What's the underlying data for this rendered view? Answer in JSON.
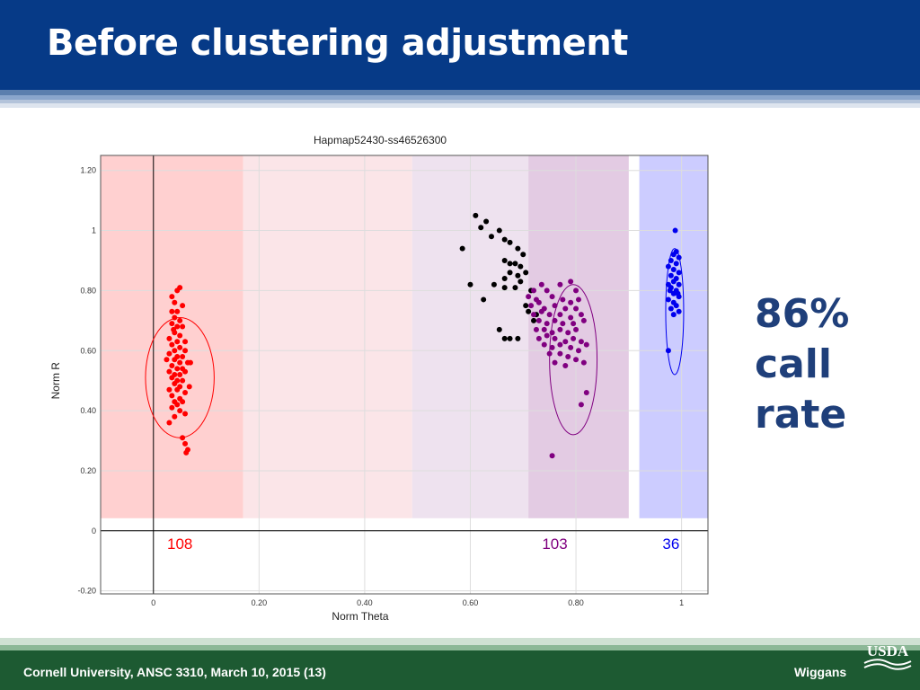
{
  "slide": {
    "title": "Before clustering adjustment",
    "callout": [
      "86%",
      "call",
      "rate"
    ],
    "footer_left": "Cornell University, ANSC 3310, March 10, 2015 (13)",
    "footer_right": "Wiggans",
    "logo_text": "USDA"
  },
  "colors": {
    "header": "#063a87",
    "callout_text": "#1f3f7a",
    "footer": "#1d5a32",
    "cluster_aa": "#ff0000",
    "cluster_ab": "#800080",
    "cluster_bb": "#0000ee",
    "nocall": "#000000"
  },
  "chart_data": {
    "type": "scatter",
    "title": "Hapmap52430-ss46526300",
    "xlabel": "Norm Theta",
    "ylabel": "Norm R",
    "xlim": [
      -0.1,
      1.05
    ],
    "ylim": [
      -0.21,
      1.25
    ],
    "xticks": [
      0,
      0.2,
      0.4,
      0.6,
      0.8,
      1
    ],
    "xtick_labels": [
      "0",
      "0.20",
      "0.40",
      "0.60",
      "0.80",
      "1"
    ],
    "yticks": [
      -0.2,
      0,
      0.2,
      0.4,
      0.6,
      0.8,
      1,
      1.2
    ],
    "ytick_labels": [
      "-0.20",
      "0",
      "0.20",
      "0.40",
      "0.60",
      "0.80",
      "1",
      "1.20"
    ],
    "grid": true,
    "zones": [
      {
        "name": "AA",
        "x": [
          -0.1,
          0.17
        ],
        "color": "#ffd0d0"
      },
      {
        "name": "AA light",
        "x": [
          0.17,
          0.49
        ],
        "color": "#fbe5e8"
      },
      {
        "name": "AB light",
        "x": [
          0.49,
          0.71
        ],
        "color": "#eee2ef"
      },
      {
        "name": "AB",
        "x": [
          0.71,
          0.9
        ],
        "color": "#e3cbe3"
      },
      {
        "name": "BB",
        "x": [
          0.92,
          1.05
        ],
        "color": "#ccccff"
      }
    ],
    "cluster_counts": [
      {
        "label": "108",
        "x": 0.05,
        "color": "#ff0000"
      },
      {
        "label": "103",
        "x": 0.76,
        "color": "#800080"
      },
      {
        "label": "36",
        "x": 0.98,
        "color": "#0000ee"
      }
    ],
    "ellipses": [
      {
        "series": "AA",
        "cx": 0.05,
        "cy": 0.51,
        "rx": 0.065,
        "ry": 0.2,
        "color": "#ff0000"
      },
      {
        "series": "AB",
        "cx": 0.795,
        "cy": 0.57,
        "rx": 0.045,
        "ry": 0.25,
        "color": "#800080"
      },
      {
        "series": "BB",
        "cx": 0.987,
        "cy": 0.73,
        "rx": 0.017,
        "ry": 0.21,
        "color": "#0000ee"
      }
    ],
    "series": [
      {
        "color": "#ff0000",
        "points": [
          [
            0.045,
            0.8
          ],
          [
            0.05,
            0.81
          ],
          [
            0.035,
            0.78
          ],
          [
            0.04,
            0.76
          ],
          [
            0.055,
            0.75
          ],
          [
            0.035,
            0.73
          ],
          [
            0.045,
            0.73
          ],
          [
            0.04,
            0.71
          ],
          [
            0.05,
            0.7
          ],
          [
            0.035,
            0.69
          ],
          [
            0.045,
            0.68
          ],
          [
            0.055,
            0.68
          ],
          [
            0.04,
            0.66
          ],
          [
            0.05,
            0.65
          ],
          [
            0.03,
            0.64
          ],
          [
            0.045,
            0.63
          ],
          [
            0.06,
            0.63
          ],
          [
            0.035,
            0.62
          ],
          [
            0.05,
            0.61
          ],
          [
            0.04,
            0.6
          ],
          [
            0.06,
            0.6
          ],
          [
            0.03,
            0.59
          ],
          [
            0.045,
            0.58
          ],
          [
            0.055,
            0.58
          ],
          [
            0.04,
            0.57
          ],
          [
            0.05,
            0.56
          ],
          [
            0.065,
            0.56
          ],
          [
            0.035,
            0.55
          ],
          [
            0.045,
            0.54
          ],
          [
            0.055,
            0.54
          ],
          [
            0.03,
            0.53
          ],
          [
            0.04,
            0.52
          ],
          [
            0.05,
            0.52
          ],
          [
            0.06,
            0.53
          ],
          [
            0.035,
            0.51
          ],
          [
            0.045,
            0.5
          ],
          [
            0.055,
            0.5
          ],
          [
            0.04,
            0.49
          ],
          [
            0.05,
            0.48
          ],
          [
            0.03,
            0.47
          ],
          [
            0.045,
            0.47
          ],
          [
            0.06,
            0.46
          ],
          [
            0.035,
            0.45
          ],
          [
            0.05,
            0.44
          ],
          [
            0.04,
            0.43
          ],
          [
            0.055,
            0.43
          ],
          [
            0.045,
            0.42
          ],
          [
            0.035,
            0.41
          ],
          [
            0.05,
            0.4
          ],
          [
            0.06,
            0.39
          ],
          [
            0.04,
            0.38
          ],
          [
            0.03,
            0.36
          ],
          [
            0.055,
            0.31
          ],
          [
            0.06,
            0.29
          ],
          [
            0.065,
            0.27
          ],
          [
            0.062,
            0.26
          ],
          [
            0.07,
            0.56
          ],
          [
            0.068,
            0.48
          ],
          [
            0.025,
            0.57
          ],
          [
            0.038,
            0.67
          ]
        ]
      },
      {
        "color": "#000000",
        "points": [
          [
            0.61,
            1.05
          ],
          [
            0.63,
            1.03
          ],
          [
            0.62,
            1.01
          ],
          [
            0.655,
            1.0
          ],
          [
            0.64,
            0.98
          ],
          [
            0.665,
            0.97
          ],
          [
            0.675,
            0.96
          ],
          [
            0.585,
            0.94
          ],
          [
            0.69,
            0.94
          ],
          [
            0.7,
            0.92
          ],
          [
            0.665,
            0.9
          ],
          [
            0.675,
            0.89
          ],
          [
            0.685,
            0.89
          ],
          [
            0.695,
            0.88
          ],
          [
            0.705,
            0.86
          ],
          [
            0.675,
            0.86
          ],
          [
            0.69,
            0.85
          ],
          [
            0.665,
            0.84
          ],
          [
            0.695,
            0.83
          ],
          [
            0.645,
            0.82
          ],
          [
            0.6,
            0.82
          ],
          [
            0.665,
            0.81
          ],
          [
            0.685,
            0.81
          ],
          [
            0.715,
            0.8
          ],
          [
            0.625,
            0.77
          ],
          [
            0.705,
            0.75
          ],
          [
            0.71,
            0.73
          ],
          [
            0.725,
            0.72
          ],
          [
            0.72,
            0.7
          ],
          [
            0.655,
            0.67
          ],
          [
            0.665,
            0.64
          ],
          [
            0.675,
            0.64
          ],
          [
            0.69,
            0.64
          ]
        ]
      },
      {
        "color": "#800080",
        "points": [
          [
            0.735,
            0.82
          ],
          [
            0.77,
            0.82
          ],
          [
            0.79,
            0.83
          ],
          [
            0.72,
            0.8
          ],
          [
            0.745,
            0.8
          ],
          [
            0.8,
            0.8
          ],
          [
            0.71,
            0.78
          ],
          [
            0.725,
            0.77
          ],
          [
            0.755,
            0.78
          ],
          [
            0.775,
            0.77
          ],
          [
            0.79,
            0.76
          ],
          [
            0.805,
            0.77
          ],
          [
            0.715,
            0.75
          ],
          [
            0.74,
            0.74
          ],
          [
            0.76,
            0.75
          ],
          [
            0.78,
            0.74
          ],
          [
            0.8,
            0.74
          ],
          [
            0.72,
            0.72
          ],
          [
            0.735,
            0.73
          ],
          [
            0.75,
            0.72
          ],
          [
            0.77,
            0.72
          ],
          [
            0.79,
            0.71
          ],
          [
            0.81,
            0.72
          ],
          [
            0.73,
            0.7
          ],
          [
            0.745,
            0.69
          ],
          [
            0.76,
            0.7
          ],
          [
            0.775,
            0.69
          ],
          [
            0.795,
            0.69
          ],
          [
            0.815,
            0.7
          ],
          [
            0.725,
            0.67
          ],
          [
            0.74,
            0.67
          ],
          [
            0.755,
            0.66
          ],
          [
            0.77,
            0.67
          ],
          [
            0.785,
            0.66
          ],
          [
            0.8,
            0.67
          ],
          [
            0.73,
            0.64
          ],
          [
            0.745,
            0.65
          ],
          [
            0.76,
            0.64
          ],
          [
            0.78,
            0.63
          ],
          [
            0.795,
            0.64
          ],
          [
            0.81,
            0.63
          ],
          [
            0.74,
            0.62
          ],
          [
            0.755,
            0.61
          ],
          [
            0.77,
            0.62
          ],
          [
            0.79,
            0.61
          ],
          [
            0.805,
            0.6
          ],
          [
            0.75,
            0.59
          ],
          [
            0.77,
            0.59
          ],
          [
            0.785,
            0.58
          ],
          [
            0.76,
            0.56
          ],
          [
            0.78,
            0.55
          ],
          [
            0.8,
            0.57
          ],
          [
            0.82,
            0.62
          ],
          [
            0.73,
            0.76
          ],
          [
            0.815,
            0.56
          ],
          [
            0.82,
            0.46
          ],
          [
            0.81,
            0.42
          ],
          [
            0.755,
            0.25
          ]
        ]
      },
      {
        "color": "#0000ee",
        "points": [
          [
            0.988,
            1.0
          ],
          [
            0.99,
            0.93
          ],
          [
            0.985,
            0.92
          ],
          [
            0.995,
            0.91
          ],
          [
            0.98,
            0.9
          ],
          [
            0.99,
            0.89
          ],
          [
            0.975,
            0.88
          ],
          [
            0.985,
            0.87
          ],
          [
            0.995,
            0.86
          ],
          [
            0.98,
            0.85
          ],
          [
            0.99,
            0.84
          ],
          [
            0.985,
            0.83
          ],
          [
            0.975,
            0.82
          ],
          [
            0.995,
            0.82
          ],
          [
            0.98,
            0.81
          ],
          [
            0.99,
            0.8
          ],
          [
            0.985,
            0.79
          ],
          [
            0.995,
            0.78
          ],
          [
            0.975,
            0.77
          ],
          [
            0.985,
            0.76
          ],
          [
            0.99,
            0.75
          ],
          [
            0.98,
            0.74
          ],
          [
            0.995,
            0.73
          ],
          [
            0.985,
            0.72
          ],
          [
            0.975,
            0.6
          ],
          [
            0.993,
            0.79
          ],
          [
            0.978,
            0.8
          ]
        ]
      }
    ]
  }
}
